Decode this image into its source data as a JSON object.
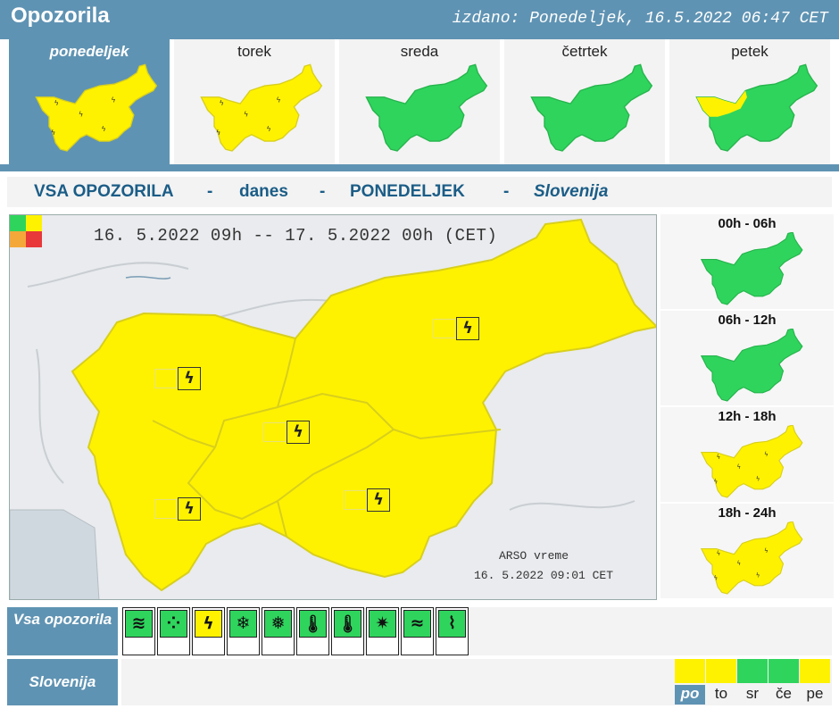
{
  "header": {
    "title": "Opozorila",
    "issued": "izdano: Ponedeljek, 16.5.2022 06:47 CET"
  },
  "colors": {
    "accent": "#5f93b3",
    "yellow": "#fff200",
    "green": "#2fd45d",
    "orange": "#f4a83a",
    "red": "#e8383a",
    "navy": "#1b5d87"
  },
  "days": [
    {
      "label": "ponedeljek",
      "active": true,
      "level": "yellow"
    },
    {
      "label": "torek",
      "active": false,
      "level": "yellow"
    },
    {
      "label": "sreda",
      "active": false,
      "level": "green"
    },
    {
      "label": "četrtek",
      "active": false,
      "level": "green"
    },
    {
      "label": "petek",
      "active": false,
      "level": "mixed"
    }
  ],
  "bar": {
    "all": "VSA OPOZORILA",
    "sep": "-",
    "today": "danes",
    "day": "PONEDELJEK",
    "region": "Slovenija"
  },
  "map": {
    "validity": "16. 5.2022  09h  --  17. 5.2022  00h    (CET)",
    "source": "ARSO vreme",
    "source_date": "16. 5.2022  09:01 CET",
    "warning_icon": "thunderstorm-icon",
    "region_level": "yellow"
  },
  "periods": [
    {
      "label": "00h - 06h",
      "level": "green"
    },
    {
      "label": "06h - 12h",
      "level": "green"
    },
    {
      "label": "12h - 18h",
      "level": "yellow"
    },
    {
      "label": "18h - 24h",
      "level": "yellow"
    }
  ],
  "rows": {
    "all_warnings": "Vsa opozorila",
    "region": "Slovenija"
  },
  "warning_types": [
    {
      "icon": "wind-icon",
      "glyph": "≋",
      "active": false
    },
    {
      "icon": "rain-icon",
      "glyph": "⁘",
      "active": false
    },
    {
      "icon": "thunderstorm-icon",
      "glyph": "ϟ",
      "active": true
    },
    {
      "icon": "snow-icon",
      "glyph": "❄",
      "active": false
    },
    {
      "icon": "snow-ice-icon",
      "glyph": "❅",
      "active": false
    },
    {
      "icon": "high-temperature-icon",
      "glyph": "🌡",
      "active": false
    },
    {
      "icon": "low-temperature-icon",
      "glyph": "🌡",
      "active": false
    },
    {
      "icon": "forest-fire-icon",
      "glyph": "✷",
      "active": false
    },
    {
      "icon": "fog-icon",
      "glyph": "≈",
      "active": false
    },
    {
      "icon": "coastal-event-icon",
      "glyph": "⌇",
      "active": false
    }
  ],
  "summary": [
    {
      "label": "po",
      "level": "yellow",
      "active": true
    },
    {
      "label": "to",
      "level": "yellow",
      "active": false
    },
    {
      "label": "sr",
      "level": "green",
      "active": false
    },
    {
      "label": "če",
      "level": "green",
      "active": false
    },
    {
      "label": "pe",
      "level": "yellow",
      "active": false
    }
  ]
}
